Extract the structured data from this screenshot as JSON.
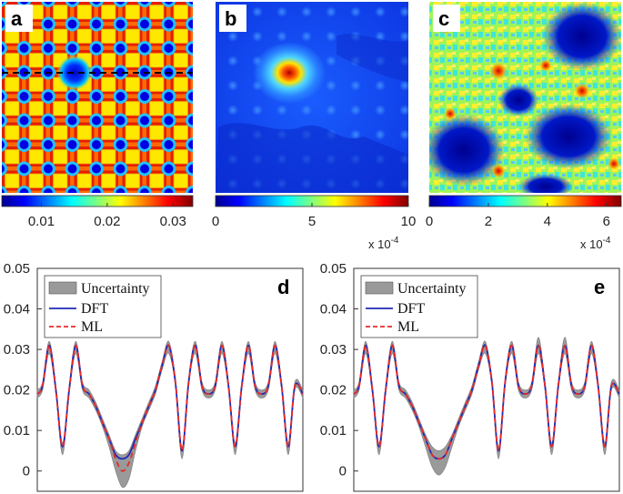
{
  "panels": {
    "a": {
      "label": "a",
      "colorbar_ticks": [
        "0.01",
        "0.02",
        "0.03"
      ],
      "color_range": [
        0.004,
        0.033
      ]
    },
    "b": {
      "label": "b",
      "colorbar_ticks": [
        "0",
        "5",
        "10"
      ],
      "exponent": "x 10",
      "exponent_power": "-4",
      "color_range": [
        0,
        10
      ]
    },
    "c": {
      "label": "c",
      "colorbar_ticks": [
        "0",
        "2",
        "4",
        "6"
      ],
      "exponent": "x 10",
      "exponent_power": "-4",
      "color_range": [
        0,
        6.5
      ]
    }
  },
  "chart_data": [
    {
      "type": "line",
      "panel_label": "d",
      "title": "",
      "xlabel": "",
      "ylabel": "",
      "ylim": [
        -0.005,
        0.05
      ],
      "xlim": [
        0,
        1
      ],
      "yticks": [
        "0",
        "0.01",
        "0.02",
        "0.03",
        "0.04",
        "0.05"
      ],
      "legend": [
        "Uncertainty",
        "DFT",
        "ML"
      ],
      "legend_position": "top-left",
      "x": [
        0,
        0.02,
        0.045,
        0.07,
        0.095,
        0.12,
        0.145,
        0.17,
        0.195,
        0.22,
        0.245,
        0.27,
        0.295,
        0.32,
        0.345,
        0.37,
        0.395,
        0.42,
        0.445,
        0.47,
        0.495,
        0.52,
        0.545,
        0.57,
        0.595,
        0.62,
        0.645,
        0.67,
        0.695,
        0.72,
        0.745,
        0.77,
        0.795,
        0.82,
        0.845,
        0.87,
        0.895,
        0.92,
        0.945,
        0.97,
        1.0
      ],
      "series": [
        {
          "name": "DFT",
          "values": [
            0.019,
            0.021,
            0.031,
            0.02,
            0.006,
            0.02,
            0.031,
            0.021,
            0.019,
            0.016,
            0.012,
            0.008,
            0.004,
            0.003,
            0.004,
            0.008,
            0.012,
            0.016,
            0.02,
            0.026,
            0.031,
            0.022,
            0.005,
            0.022,
            0.031,
            0.021,
            0.019,
            0.021,
            0.031,
            0.021,
            0.006,
            0.021,
            0.031,
            0.021,
            0.019,
            0.021,
            0.031,
            0.021,
            0.006,
            0.021,
            0.019
          ]
        },
        {
          "name": "ML",
          "values": [
            0.019,
            0.021,
            0.031,
            0.02,
            0.006,
            0.02,
            0.031,
            0.021,
            0.019,
            0.016,
            0.012,
            0.008,
            0.003,
            0.0,
            0.002,
            0.007,
            0.012,
            0.016,
            0.02,
            0.026,
            0.031,
            0.022,
            0.005,
            0.022,
            0.031,
            0.021,
            0.019,
            0.021,
            0.031,
            0.021,
            0.006,
            0.021,
            0.031,
            0.021,
            0.019,
            0.021,
            0.031,
            0.021,
            0.006,
            0.021,
            0.019
          ]
        },
        {
          "name": "Uncertainty",
          "upper": [
            0.02,
            0.022,
            0.032,
            0.021,
            0.007,
            0.021,
            0.032,
            0.022,
            0.02,
            0.017,
            0.013,
            0.009,
            0.005,
            0.004,
            0.005,
            0.009,
            0.013,
            0.017,
            0.021,
            0.027,
            0.032,
            0.023,
            0.006,
            0.023,
            0.032,
            0.022,
            0.02,
            0.022,
            0.032,
            0.022,
            0.007,
            0.022,
            0.032,
            0.022,
            0.02,
            0.022,
            0.032,
            0.022,
            0.007,
            0.022,
            0.02
          ],
          "lower": [
            0.018,
            0.02,
            0.029,
            0.019,
            0.004,
            0.019,
            0.029,
            0.02,
            0.018,
            0.015,
            0.011,
            0.006,
            0.0,
            -0.004,
            -0.002,
            0.005,
            0.011,
            0.015,
            0.019,
            0.025,
            0.029,
            0.021,
            0.003,
            0.021,
            0.029,
            0.02,
            0.018,
            0.02,
            0.029,
            0.02,
            0.004,
            0.02,
            0.029,
            0.02,
            0.018,
            0.02,
            0.029,
            0.02,
            0.004,
            0.02,
            0.018
          ]
        }
      ]
    },
    {
      "type": "line",
      "panel_label": "e",
      "title": "",
      "xlabel": "",
      "ylabel": "",
      "ylim": [
        -0.005,
        0.05
      ],
      "xlim": [
        0,
        1
      ],
      "yticks": [
        "0",
        "0.01",
        "0.02",
        "0.03",
        "0.04",
        "0.05"
      ],
      "legend": [
        "Uncertainty",
        "DFT",
        "ML"
      ],
      "legend_position": "top-left",
      "x": [
        0,
        0.02,
        0.045,
        0.07,
        0.095,
        0.12,
        0.145,
        0.17,
        0.195,
        0.22,
        0.245,
        0.27,
        0.295,
        0.32,
        0.345,
        0.37,
        0.395,
        0.42,
        0.445,
        0.47,
        0.495,
        0.52,
        0.545,
        0.57,
        0.595,
        0.62,
        0.645,
        0.67,
        0.695,
        0.72,
        0.745,
        0.77,
        0.795,
        0.82,
        0.845,
        0.87,
        0.895,
        0.92,
        0.945,
        0.97,
        1.0
      ],
      "series": [
        {
          "name": "DFT",
          "values": [
            0.019,
            0.021,
            0.031,
            0.02,
            0.006,
            0.02,
            0.031,
            0.021,
            0.019,
            0.016,
            0.012,
            0.008,
            0.004,
            0.003,
            0.004,
            0.008,
            0.012,
            0.016,
            0.02,
            0.026,
            0.031,
            0.022,
            0.005,
            0.022,
            0.031,
            0.021,
            0.019,
            0.021,
            0.031,
            0.021,
            0.006,
            0.021,
            0.031,
            0.021,
            0.019,
            0.021,
            0.031,
            0.021,
            0.006,
            0.021,
            0.019
          ]
        },
        {
          "name": "ML",
          "values": [
            0.019,
            0.021,
            0.031,
            0.02,
            0.006,
            0.02,
            0.031,
            0.021,
            0.019,
            0.016,
            0.012,
            0.008,
            0.004,
            0.003,
            0.004,
            0.008,
            0.012,
            0.016,
            0.02,
            0.026,
            0.031,
            0.022,
            0.005,
            0.022,
            0.031,
            0.021,
            0.019,
            0.021,
            0.031,
            0.021,
            0.006,
            0.021,
            0.031,
            0.021,
            0.019,
            0.021,
            0.031,
            0.021,
            0.006,
            0.021,
            0.019
          ]
        },
        {
          "name": "Uncertainty",
          "upper": [
            0.02,
            0.022,
            0.032,
            0.021,
            0.007,
            0.021,
            0.032,
            0.022,
            0.02,
            0.017,
            0.013,
            0.009,
            0.006,
            0.005,
            0.006,
            0.009,
            0.013,
            0.017,
            0.021,
            0.027,
            0.032,
            0.023,
            0.006,
            0.023,
            0.032,
            0.022,
            0.02,
            0.022,
            0.033,
            0.022,
            0.007,
            0.022,
            0.033,
            0.022,
            0.02,
            0.022,
            0.032,
            0.022,
            0.007,
            0.022,
            0.02
          ],
          "lower": [
            0.018,
            0.02,
            0.029,
            0.019,
            0.004,
            0.019,
            0.029,
            0.02,
            0.018,
            0.015,
            0.011,
            0.006,
            0.001,
            -0.001,
            0.001,
            0.006,
            0.011,
            0.015,
            0.019,
            0.025,
            0.029,
            0.021,
            0.003,
            0.021,
            0.029,
            0.02,
            0.018,
            0.02,
            0.029,
            0.02,
            0.004,
            0.02,
            0.029,
            0.02,
            0.018,
            0.02,
            0.029,
            0.02,
            0.004,
            0.02,
            0.018
          ]
        }
      ]
    }
  ],
  "colors": {
    "dft": "#1f2ab8",
    "ml": "#e8292a",
    "uncertainty": "#9a9a9a",
    "axis": "#333333"
  }
}
